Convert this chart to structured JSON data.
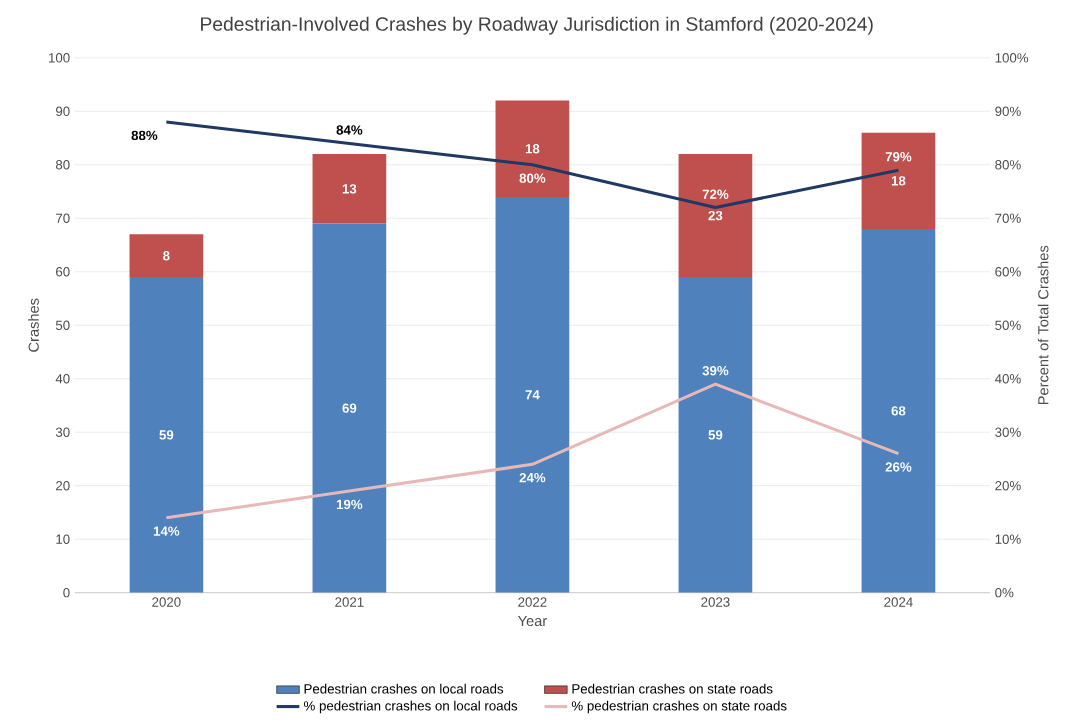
{
  "chart_data": {
    "type": "bar",
    "stacked": true,
    "title": "Pedestrian-Involved Crashes by Roadway Jurisdiction in Stamford (2020-2024)",
    "xlabel": "Year",
    "ylabel": "Crashes",
    "y2label": "Percent of Total Crashes",
    "categories": [
      "2020",
      "2021",
      "2022",
      "2023",
      "2024"
    ],
    "ylim": [
      0,
      100
    ],
    "yticks": [
      0,
      10,
      20,
      30,
      40,
      50,
      60,
      70,
      80,
      90,
      100
    ],
    "y2lim": [
      0,
      100
    ],
    "y2ticks": [
      {
        "value": 0,
        "label": "0%"
      },
      {
        "value": 10,
        "label": "10%"
      },
      {
        "value": 20,
        "label": "20%"
      },
      {
        "value": 30,
        "label": "30%"
      },
      {
        "value": 40,
        "label": "40%"
      },
      {
        "value": 50,
        "label": "50%"
      },
      {
        "value": 60,
        "label": "60%"
      },
      {
        "value": 70,
        "label": "70%"
      },
      {
        "value": 80,
        "label": "80%"
      },
      {
        "value": 90,
        "label": "90%"
      },
      {
        "value": 100,
        "label": "100%"
      }
    ],
    "grid": "y",
    "legend": "bottom",
    "data_labels": true,
    "series": [
      {
        "name": "Pedestrian crashes on local roads",
        "color": "#4f81bd",
        "values": [
          59,
          69,
          74,
          59,
          68
        ]
      },
      {
        "name": "Pedestrian crashes on state roads",
        "color": "#c0504d",
        "values": [
          8,
          13,
          18,
          23,
          18
        ]
      },
      {
        "name": "% pedestrian crashes on local roads",
        "type": "line",
        "axis": "y2",
        "color": "#1f3864",
        "values": [
          88,
          84,
          80,
          72,
          79
        ],
        "value_labels": [
          "88%",
          "84%",
          "80%",
          "72%",
          "79%"
        ]
      },
      {
        "name": "% pedestrian crashes on state roads",
        "type": "line",
        "axis": "y2",
        "color": "#e6b9b8",
        "values": [
          14,
          19,
          24,
          39,
          26
        ],
        "value_labels": [
          "14%",
          "19%",
          "24%",
          "39%",
          "26%"
        ]
      }
    ]
  }
}
